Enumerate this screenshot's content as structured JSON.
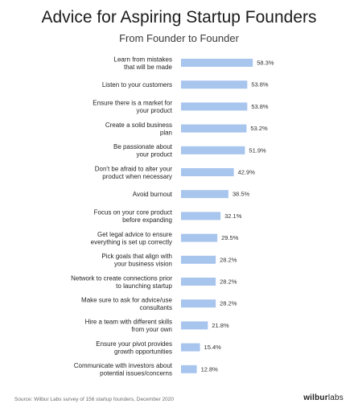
{
  "chart_data": {
    "type": "bar",
    "title": "Advice for Aspiring Startup Founders",
    "subtitle": "From Founder to Founder",
    "categories": [
      [
        "Learn from mistakes",
        "that will be made"
      ],
      [
        "Listen to your customers"
      ],
      [
        "Ensure there is a market for",
        "your product"
      ],
      [
        "Create a solid business",
        "plan"
      ],
      [
        "Be passionate about",
        "your product"
      ],
      [
        "Don't be afraid to alter your",
        "product when necessary"
      ],
      [
        "Avoid burnout"
      ],
      [
        "Focus on your core product",
        "before expanding"
      ],
      [
        "Get legal advice to ensure",
        "everything is set up correctly"
      ],
      [
        "Pick goals that align with",
        "your business vision"
      ],
      [
        "Network to create connections prior",
        "to launching startup"
      ],
      [
        "Make sure to ask for advice/use",
        "consultants"
      ],
      [
        "Hire a team with different skills",
        "from your own"
      ],
      [
        "Ensure your pivot provides",
        "growth opportunities"
      ],
      [
        "Communicate with investors about",
        "potential issues/concerns"
      ]
    ],
    "values": [
      58.3,
      53.8,
      53.8,
      53.2,
      51.9,
      42.9,
      38.5,
      32.1,
      29.5,
      28.2,
      28.2,
      28.2,
      21.8,
      15.4,
      12.8
    ],
    "value_labels": [
      "58.3%",
      "53.8%",
      "53.8%",
      "53.2%",
      "51.9%",
      "42.9%",
      "38.5%",
      "32.1%",
      "29.5%",
      "28.2%",
      "28.2%",
      "28.2%",
      "21.8%",
      "15.4%",
      "12.8%"
    ],
    "orientation": "horizontal",
    "xlim": [
      0,
      100
    ],
    "grid": false,
    "bar_color": "#a8c5ee"
  },
  "footer": {
    "source": "Source: Wilbur Labs survey of 156 startup founders, December 2020",
    "brand_bold": "wilbur",
    "brand_light": "labs"
  }
}
